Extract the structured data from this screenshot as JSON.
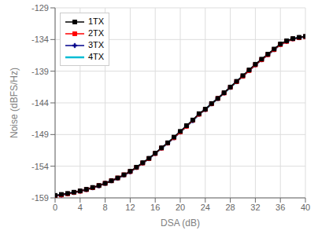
{
  "chart_data": {
    "type": "line",
    "xlabel": "DSA (dB)",
    "ylabel": "Noise (dBFS/Hz)",
    "xlim": [
      0,
      40
    ],
    "ylim": [
      -159,
      -129
    ],
    "xticks": [
      0,
      4,
      8,
      12,
      16,
      20,
      24,
      28,
      32,
      36,
      40
    ],
    "yticks": [
      -159,
      -154,
      -149,
      -144,
      -139,
      -134,
      -129
    ],
    "grid": true,
    "legend": "upper left",
    "x": [
      0,
      1,
      2,
      3,
      4,
      5,
      6,
      7,
      8,
      9,
      10,
      11,
      12,
      13,
      14,
      15,
      16,
      17,
      18,
      19,
      20,
      21,
      22,
      23,
      24,
      25,
      26,
      27,
      28,
      29,
      30,
      31,
      32,
      33,
      34,
      35,
      36,
      37,
      38,
      39,
      40
    ],
    "series": [
      {
        "name": "1TX",
        "color": "#000000",
        "marker": "square",
        "values": [
          -158.6,
          -158.45,
          -158.3,
          -158.1,
          -157.9,
          -157.65,
          -157.35,
          -157.05,
          -156.7,
          -156.3,
          -155.85,
          -155.35,
          -154.8,
          -154.15,
          -153.45,
          -152.75,
          -151.95,
          -151.1,
          -150.3,
          -149.4,
          -148.5,
          -147.6,
          -146.7,
          -145.7,
          -145.0,
          -144.1,
          -143.3,
          -142.4,
          -141.5,
          -140.6,
          -139.7,
          -138.8,
          -137.9,
          -137.1,
          -136.3,
          -135.5,
          -134.7,
          -134.2,
          -133.85,
          -133.65,
          -133.5
        ]
      },
      {
        "name": "2TX",
        "color": "#ff0000",
        "marker": "square",
        "values": [
          -158.7,
          -158.55,
          -158.35,
          -158.15,
          -157.95,
          -157.7,
          -157.4,
          -157.05,
          -156.7,
          -156.3,
          -155.85,
          -155.35,
          -154.85,
          -154.2,
          -153.5,
          -152.8,
          -152.0,
          -151.15,
          -150.35,
          -149.5,
          -148.6,
          -147.7,
          -146.75,
          -145.8,
          -145.05,
          -144.15,
          -143.3,
          -142.45,
          -141.55,
          -140.65,
          -139.8,
          -138.9,
          -138.0,
          -137.2,
          -136.4,
          -135.6,
          -134.8,
          -134.3,
          -133.9,
          -133.7,
          -133.55
        ]
      },
      {
        "name": "3TX",
        "color": "#00008b",
        "marker": "plus",
        "values": [
          -158.7,
          -158.55,
          -158.35,
          -158.15,
          -157.95,
          -157.7,
          -157.4,
          -157.1,
          -156.7,
          -156.3,
          -155.9,
          -155.4,
          -154.9,
          -154.2,
          -153.5,
          -152.8,
          -152.0,
          -151.15,
          -150.35,
          -149.5,
          -148.6,
          -147.7,
          -146.8,
          -145.8,
          -145.05,
          -144.15,
          -143.3,
          -142.45,
          -141.55,
          -140.65,
          -139.8,
          -138.9,
          -138.0,
          -137.2,
          -136.4,
          -135.6,
          -134.8,
          -134.3,
          -133.9,
          -133.7,
          -133.55
        ]
      },
      {
        "name": "4TX",
        "color": "#00bcd4",
        "values": [
          -158.7,
          -158.55,
          -158.35,
          -158.15,
          -157.95,
          -157.7,
          -157.4,
          -157.1,
          -156.7,
          -156.3,
          -155.9,
          -155.4,
          -154.9,
          -154.2,
          -153.5,
          -152.8,
          -152.0,
          -151.15,
          -150.35,
          -149.5,
          -148.6,
          -147.7,
          -146.8,
          -145.8,
          -145.05,
          -144.15,
          -143.3,
          -142.45,
          -141.55,
          -140.65,
          -139.8,
          -138.9,
          -138.0,
          -137.2,
          -136.4,
          -135.6,
          -134.8,
          -134.3,
          -133.9,
          -133.7,
          -133.55
        ]
      }
    ]
  }
}
